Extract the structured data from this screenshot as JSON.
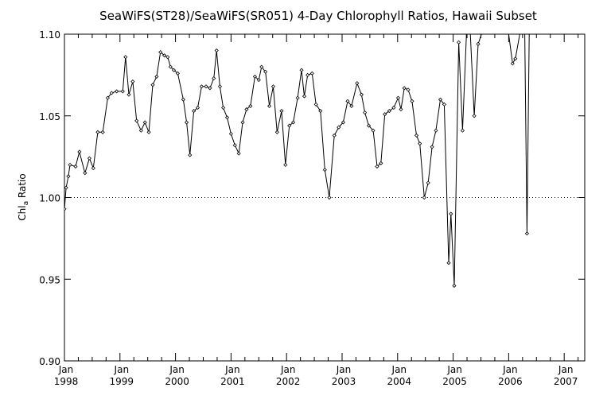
{
  "chart_data": {
    "type": "line",
    "title": "SeaWiFS(ST28)/SeaWiFS(SR051) 4-Day Chlorophyll Ratios, Hawaii Subset",
    "ylabel_main": "Chl",
    "ylabel_sub": "a",
    "ylabel_rest": " Ratio",
    "ylim": [
      0.9,
      1.1
    ],
    "xlim": [
      1998.0,
      2007.37
    ],
    "y_ticks": [
      {
        "value": 0.9,
        "label": "0.90"
      },
      {
        "value": 0.95,
        "label": "0.95"
      },
      {
        "value": 1.0,
        "label": "1.00"
      },
      {
        "value": 1.05,
        "label": "1.05"
      },
      {
        "value": 1.1,
        "label": "1.10"
      }
    ],
    "x_ticks": [
      {
        "value": 1998.0,
        "month": "Jan",
        "year": "1998"
      },
      {
        "value": 1999.0,
        "month": "Jan",
        "year": "1999"
      },
      {
        "value": 2000.0,
        "month": "Jan",
        "year": "2000"
      },
      {
        "value": 2001.0,
        "month": "Jan",
        "year": "2001"
      },
      {
        "value": 2002.0,
        "month": "Jan",
        "year": "2002"
      },
      {
        "value": 2003.0,
        "month": "Jan",
        "year": "2003"
      },
      {
        "value": 2004.0,
        "month": "Jan",
        "year": "2004"
      },
      {
        "value": 2005.0,
        "month": "Jan",
        "year": "2005"
      },
      {
        "value": 2006.0,
        "month": "Jan",
        "year": "2006"
      },
      {
        "value": 2007.0,
        "month": "Jan",
        "year": "2007"
      }
    ],
    "reference_line": 1.0,
    "series": [
      {
        "points": [
          [
            1998.0,
            0.993
          ],
          [
            1998.03,
            1.006
          ],
          [
            1998.07,
            1.013
          ],
          [
            1998.1,
            1.02
          ],
          [
            1998.2,
            1.019
          ],
          [
            1998.27,
            1.028
          ],
          [
            1998.37,
            1.015
          ],
          [
            1998.45,
            1.024
          ],
          [
            1998.52,
            1.018
          ],
          [
            1998.6,
            1.04
          ],
          [
            1998.69,
            1.04
          ],
          [
            1998.78,
            1.061
          ],
          [
            1998.85,
            1.064
          ],
          [
            1998.94,
            1.065
          ],
          [
            1999.05,
            1.065
          ],
          [
            1999.1,
            1.086
          ],
          [
            1999.16,
            1.063
          ],
          [
            1999.23,
            1.071
          ],
          [
            1999.3,
            1.047
          ],
          [
            1999.38,
            1.041
          ],
          [
            1999.45,
            1.046
          ],
          [
            1999.52,
            1.04
          ],
          [
            1999.59,
            1.069
          ],
          [
            1999.66,
            1.074
          ],
          [
            1999.73,
            1.089
          ],
          [
            1999.8,
            1.087
          ],
          [
            1999.86,
            1.086
          ],
          [
            1999.91,
            1.08
          ],
          [
            1999.97,
            1.078
          ],
          [
            2000.04,
            1.076
          ],
          [
            2000.14,
            1.06
          ],
          [
            2000.2,
            1.046
          ],
          [
            2000.26,
            1.026
          ],
          [
            2000.33,
            1.053
          ],
          [
            2000.4,
            1.055
          ],
          [
            2000.47,
            1.068
          ],
          [
            2000.55,
            1.068
          ],
          [
            2000.62,
            1.067
          ],
          [
            2000.69,
            1.073
          ],
          [
            2000.74,
            1.09
          ],
          [
            2000.8,
            1.068
          ],
          [
            2000.86,
            1.055
          ],
          [
            2000.93,
            1.049
          ],
          [
            2001.0,
            1.039
          ],
          [
            2001.07,
            1.032
          ],
          [
            2001.14,
            1.027
          ],
          [
            2001.21,
            1.046
          ],
          [
            2001.28,
            1.054
          ],
          [
            2001.35,
            1.056
          ],
          [
            2001.43,
            1.074
          ],
          [
            2001.5,
            1.072
          ],
          [
            2001.55,
            1.08
          ],
          [
            2001.62,
            1.077
          ],
          [
            2001.69,
            1.056
          ],
          [
            2001.76,
            1.068
          ],
          [
            2001.83,
            1.04
          ],
          [
            2001.91,
            1.053
          ],
          [
            2001.98,
            1.02
          ],
          [
            2002.05,
            1.044
          ],
          [
            2002.12,
            1.046
          ],
          [
            2002.2,
            1.061
          ],
          [
            2002.27,
            1.078
          ],
          [
            2002.32,
            1.062
          ],
          [
            2002.38,
            1.075
          ],
          [
            2002.46,
            1.076
          ],
          [
            2002.53,
            1.057
          ],
          [
            2002.61,
            1.053
          ],
          [
            2002.69,
            1.017
          ],
          [
            2002.77,
            1.0
          ],
          [
            2002.86,
            1.038
          ],
          [
            2002.94,
            1.043
          ],
          [
            2003.02,
            1.046
          ],
          [
            2003.1,
            1.059
          ],
          [
            2003.17,
            1.056
          ],
          [
            2003.27,
            1.07
          ],
          [
            2003.35,
            1.063
          ],
          [
            2003.41,
            1.052
          ],
          [
            2003.48,
            1.044
          ],
          [
            2003.56,
            1.041
          ],
          [
            2003.63,
            1.019
          ],
          [
            2003.7,
            1.021
          ],
          [
            2003.77,
            1.051
          ],
          [
            2003.85,
            1.053
          ],
          [
            2003.93,
            1.055
          ],
          [
            2004.01,
            1.061
          ],
          [
            2004.06,
            1.054
          ],
          [
            2004.12,
            1.067
          ],
          [
            2004.19,
            1.066
          ],
          [
            2004.26,
            1.059
          ],
          [
            2004.34,
            1.038
          ],
          [
            2004.4,
            1.033
          ],
          [
            2004.48,
            1.0
          ],
          [
            2004.55,
            1.009
          ],
          [
            2004.62,
            1.031
          ],
          [
            2004.69,
            1.041
          ],
          [
            2004.77,
            1.06
          ],
          [
            2004.84,
            1.057
          ],
          [
            2004.92,
            0.96
          ],
          [
            2004.96,
            0.99
          ],
          [
            2005.02,
            0.946
          ],
          [
            2005.1,
            1.095
          ],
          [
            2005.17,
            1.041
          ],
          [
            2005.24,
            1.1
          ],
          [
            2005.31,
            1.1
          ],
          [
            2005.38,
            1.05
          ],
          [
            2005.45,
            1.094
          ],
          [
            2005.51,
            1.1
          ],
          [
            2005.58,
            1.1
          ],
          [
            2005.65,
            1.1
          ],
          [
            2005.72,
            1.1
          ],
          [
            2005.79,
            1.1
          ],
          [
            2005.86,
            1.1
          ],
          [
            2005.93,
            1.1
          ],
          [
            2006.0,
            1.1
          ],
          [
            2006.07,
            1.082
          ],
          [
            2006.12,
            1.085
          ],
          [
            2006.2,
            1.1
          ],
          [
            2006.29,
            1.1
          ],
          [
            2006.33,
            0.978
          ],
          [
            2006.37,
            1.1
          ]
        ]
      }
    ]
  }
}
